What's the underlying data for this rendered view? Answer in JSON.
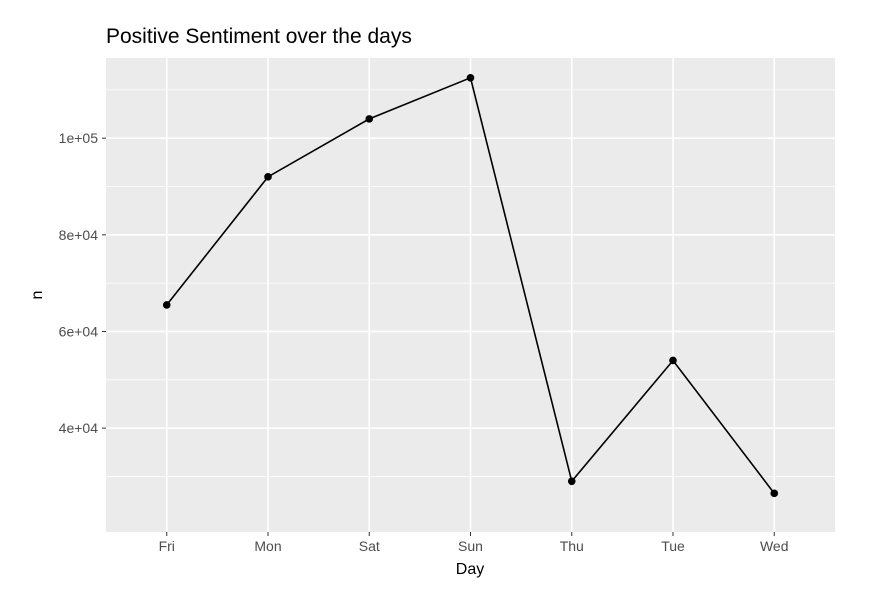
{
  "chart_data": {
    "type": "line",
    "title": "Positive Sentiment over the days",
    "xlabel": "Day",
    "ylabel": "n",
    "categories": [
      "Fri",
      "Mon",
      "Sat",
      "Sun",
      "Thu",
      "Tue",
      "Wed"
    ],
    "series": [
      {
        "values": [
          65500,
          92000,
          104000,
          112500,
          29000,
          54000,
          26500
        ]
      }
    ],
    "ylim": [
      18500,
      116600
    ],
    "yticks": [
      40000,
      60000,
      80000,
      100000
    ],
    "ytick_labels": [
      "4e+04",
      "6e+04",
      "8e+04",
      "1e+05"
    ],
    "grid": true,
    "legend": "none",
    "colors": {
      "panel": "#ebebeb",
      "grid": "#ffffff",
      "line": "#000000",
      "tick_text": "#4d4d4d"
    }
  }
}
